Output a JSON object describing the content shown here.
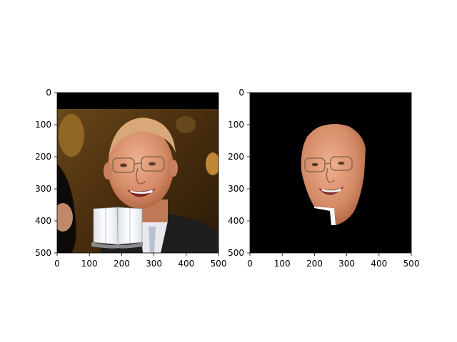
{
  "figure": {
    "panels": [
      {
        "id": "left",
        "content": "face photograph with an open-book overlay",
        "xlim": [
          0,
          500
        ],
        "ylim": [
          0,
          500
        ],
        "x_ticks": [
          "0",
          "100",
          "200",
          "300",
          "400",
          "500"
        ],
        "y_ticks": [
          "0",
          "100",
          "200",
          "300",
          "400",
          "500"
        ]
      },
      {
        "id": "right",
        "content": "segmented face on black background",
        "xlim": [
          0,
          500
        ],
        "ylim": [
          0,
          500
        ],
        "x_ticks": [
          "0",
          "100",
          "200",
          "300",
          "400",
          "500"
        ],
        "y_ticks": [
          "0",
          "100",
          "200",
          "300",
          "400",
          "500"
        ]
      }
    ],
    "colors": {
      "black": "#000000",
      "background_warm": "#5a3a12",
      "skin": "#d89070",
      "suit": "#1e1e1e",
      "shirt": "#e8e8ee",
      "book": "#f4f6fa"
    }
  }
}
